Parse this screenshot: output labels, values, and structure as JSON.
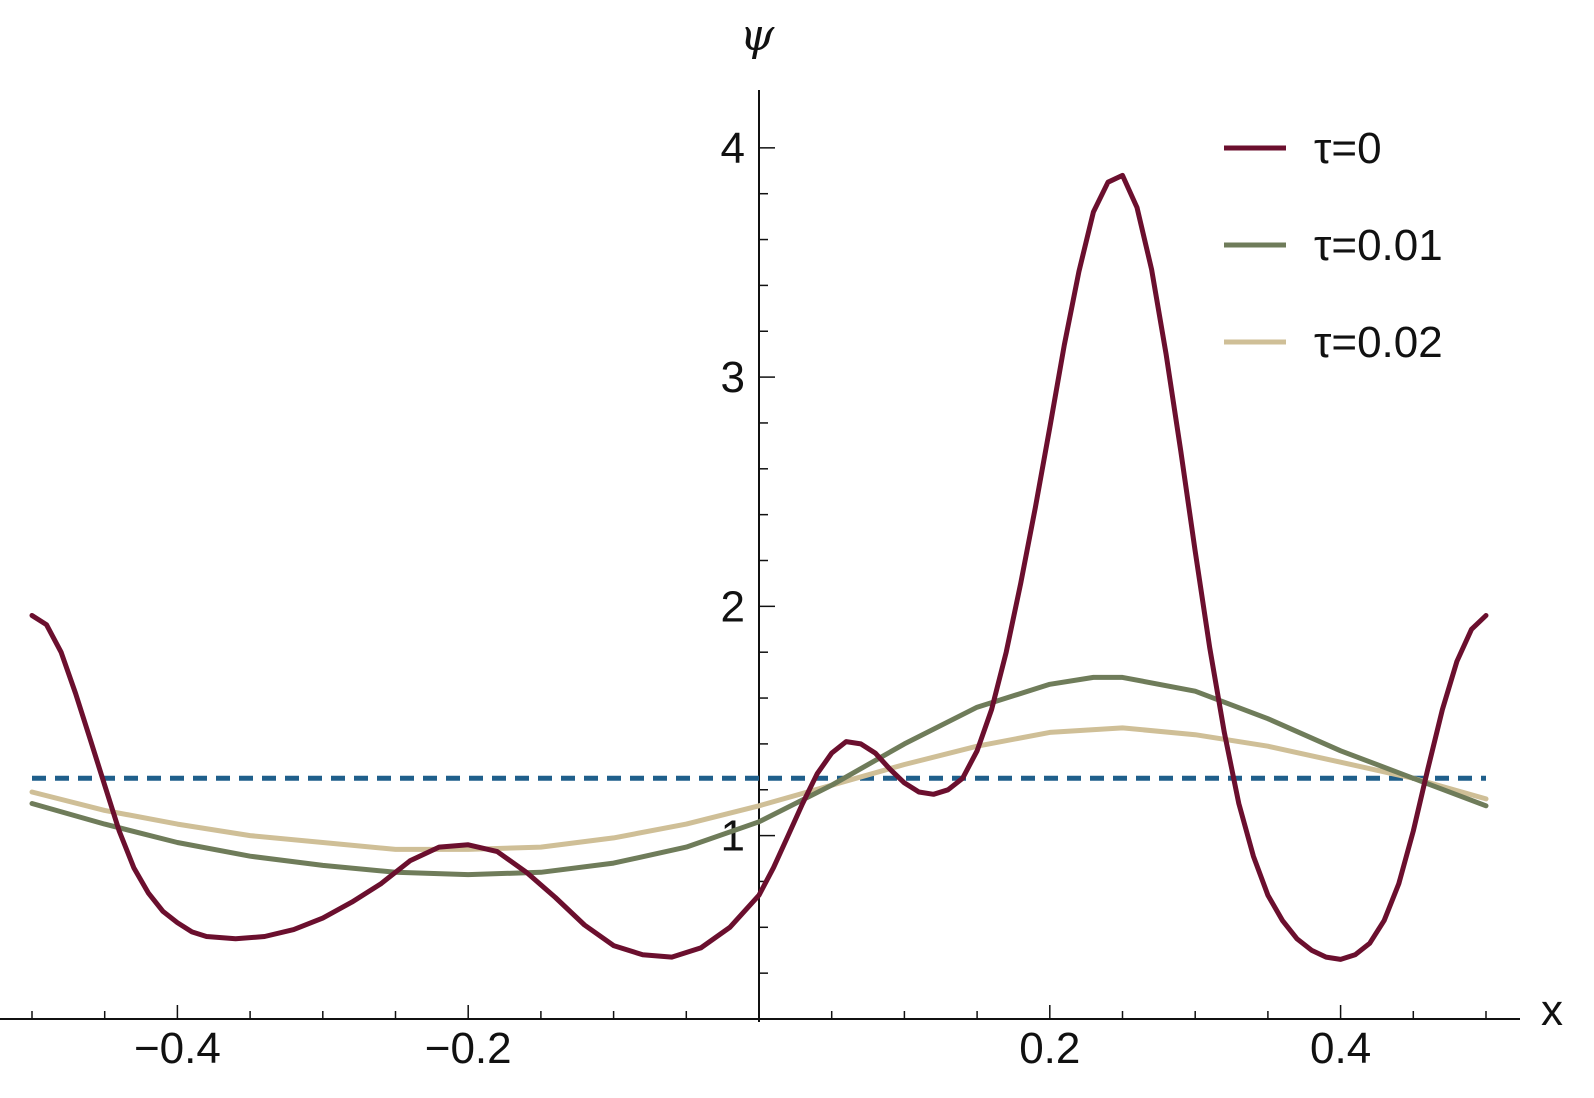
{
  "chart_data": {
    "type": "line",
    "xlabel": "x",
    "ylabel": "ψ",
    "xlim": [
      -0.5,
      0.5
    ],
    "ylim": [
      0.25,
      4.1
    ],
    "x_origin_y": 0.2,
    "x_ticks": [
      {
        "value": -0.4,
        "label": "−0.4"
      },
      {
        "value": -0.2,
        "label": "−0.2"
      },
      {
        "value": 0.2,
        "label": "0.2"
      },
      {
        "value": 0.4,
        "label": "0.4"
      }
    ],
    "x_minor_step": 0.05,
    "y_ticks": [
      {
        "value": 1,
        "label": "1"
      },
      {
        "value": 2,
        "label": "2"
      },
      {
        "value": 3,
        "label": "3"
      },
      {
        "value": 4,
        "label": "4"
      }
    ],
    "y_minor_step": 0.2,
    "legend_position": "top-right",
    "reference_line": {
      "y": 1.25,
      "style": "dashed",
      "color": "#1f5f8b"
    },
    "series": [
      {
        "name": "τ=0",
        "color": "#6b0f2e",
        "points": [
          [
            -0.5,
            1.96
          ],
          [
            -0.49,
            1.92
          ],
          [
            -0.48,
            1.8
          ],
          [
            -0.47,
            1.62
          ],
          [
            -0.46,
            1.42
          ],
          [
            -0.45,
            1.22
          ],
          [
            -0.44,
            1.02
          ],
          [
            -0.43,
            0.86
          ],
          [
            -0.42,
            0.75
          ],
          [
            -0.41,
            0.67
          ],
          [
            -0.4,
            0.62
          ],
          [
            -0.39,
            0.58
          ],
          [
            -0.38,
            0.56
          ],
          [
            -0.36,
            0.55
          ],
          [
            -0.34,
            0.56
          ],
          [
            -0.32,
            0.59
          ],
          [
            -0.3,
            0.64
          ],
          [
            -0.28,
            0.71
          ],
          [
            -0.26,
            0.79
          ],
          [
            -0.24,
            0.89
          ],
          [
            -0.22,
            0.95
          ],
          [
            -0.2,
            0.96
          ],
          [
            -0.18,
            0.93
          ],
          [
            -0.16,
            0.84
          ],
          [
            -0.14,
            0.73
          ],
          [
            -0.12,
            0.61
          ],
          [
            -0.1,
            0.52
          ],
          [
            -0.08,
            0.48
          ],
          [
            -0.06,
            0.47
          ],
          [
            -0.04,
            0.51
          ],
          [
            -0.02,
            0.6
          ],
          [
            0.0,
            0.74
          ],
          [
            0.01,
            0.86
          ],
          [
            0.02,
            1.0
          ],
          [
            0.03,
            1.14
          ],
          [
            0.04,
            1.27
          ],
          [
            0.05,
            1.36
          ],
          [
            0.06,
            1.41
          ],
          [
            0.07,
            1.4
          ],
          [
            0.08,
            1.36
          ],
          [
            0.09,
            1.29
          ],
          [
            0.1,
            1.23
          ],
          [
            0.11,
            1.19
          ],
          [
            0.12,
            1.18
          ],
          [
            0.13,
            1.2
          ],
          [
            0.14,
            1.25
          ],
          [
            0.15,
            1.37
          ],
          [
            0.16,
            1.55
          ],
          [
            0.17,
            1.8
          ],
          [
            0.18,
            2.1
          ],
          [
            0.19,
            2.43
          ],
          [
            0.2,
            2.78
          ],
          [
            0.21,
            3.14
          ],
          [
            0.22,
            3.46
          ],
          [
            0.23,
            3.72
          ],
          [
            0.24,
            3.85
          ],
          [
            0.25,
            3.88
          ],
          [
            0.26,
            3.74
          ],
          [
            0.27,
            3.47
          ],
          [
            0.28,
            3.1
          ],
          [
            0.29,
            2.68
          ],
          [
            0.3,
            2.24
          ],
          [
            0.31,
            1.82
          ],
          [
            0.32,
            1.45
          ],
          [
            0.33,
            1.14
          ],
          [
            0.34,
            0.91
          ],
          [
            0.35,
            0.74
          ],
          [
            0.36,
            0.63
          ],
          [
            0.37,
            0.55
          ],
          [
            0.38,
            0.5
          ],
          [
            0.39,
            0.47
          ],
          [
            0.4,
            0.46
          ],
          [
            0.41,
            0.48
          ],
          [
            0.42,
            0.53
          ],
          [
            0.43,
            0.63
          ],
          [
            0.44,
            0.79
          ],
          [
            0.45,
            1.02
          ],
          [
            0.46,
            1.29
          ],
          [
            0.47,
            1.55
          ],
          [
            0.48,
            1.76
          ],
          [
            0.49,
            1.9
          ],
          [
            0.5,
            1.96
          ]
        ]
      },
      {
        "name": "τ=0.01",
        "color": "#6f7c5a",
        "points": [
          [
            -0.5,
            1.14
          ],
          [
            -0.45,
            1.05
          ],
          [
            -0.4,
            0.97
          ],
          [
            -0.35,
            0.91
          ],
          [
            -0.3,
            0.87
          ],
          [
            -0.25,
            0.84
          ],
          [
            -0.2,
            0.83
          ],
          [
            -0.15,
            0.84
          ],
          [
            -0.1,
            0.88
          ],
          [
            -0.05,
            0.95
          ],
          [
            0.0,
            1.06
          ],
          [
            0.05,
            1.22
          ],
          [
            0.1,
            1.4
          ],
          [
            0.15,
            1.56
          ],
          [
            0.2,
            1.66
          ],
          [
            0.23,
            1.69
          ],
          [
            0.25,
            1.69
          ],
          [
            0.3,
            1.63
          ],
          [
            0.35,
            1.51
          ],
          [
            0.4,
            1.37
          ],
          [
            0.45,
            1.25
          ],
          [
            0.5,
            1.13
          ]
        ]
      },
      {
        "name": "τ=0.02",
        "color": "#cfbf97",
        "points": [
          [
            -0.5,
            1.19
          ],
          [
            -0.45,
            1.11
          ],
          [
            -0.4,
            1.05
          ],
          [
            -0.35,
            1.0
          ],
          [
            -0.3,
            0.97
          ],
          [
            -0.25,
            0.94
          ],
          [
            -0.2,
            0.94
          ],
          [
            -0.15,
            0.95
          ],
          [
            -0.1,
            0.99
          ],
          [
            -0.05,
            1.05
          ],
          [
            0.0,
            1.13
          ],
          [
            0.05,
            1.22
          ],
          [
            0.1,
            1.31
          ],
          [
            0.15,
            1.39
          ],
          [
            0.2,
            1.45
          ],
          [
            0.25,
            1.47
          ],
          [
            0.3,
            1.44
          ],
          [
            0.35,
            1.39
          ],
          [
            0.4,
            1.32
          ],
          [
            0.45,
            1.25
          ],
          [
            0.5,
            1.16
          ]
        ]
      }
    ]
  }
}
